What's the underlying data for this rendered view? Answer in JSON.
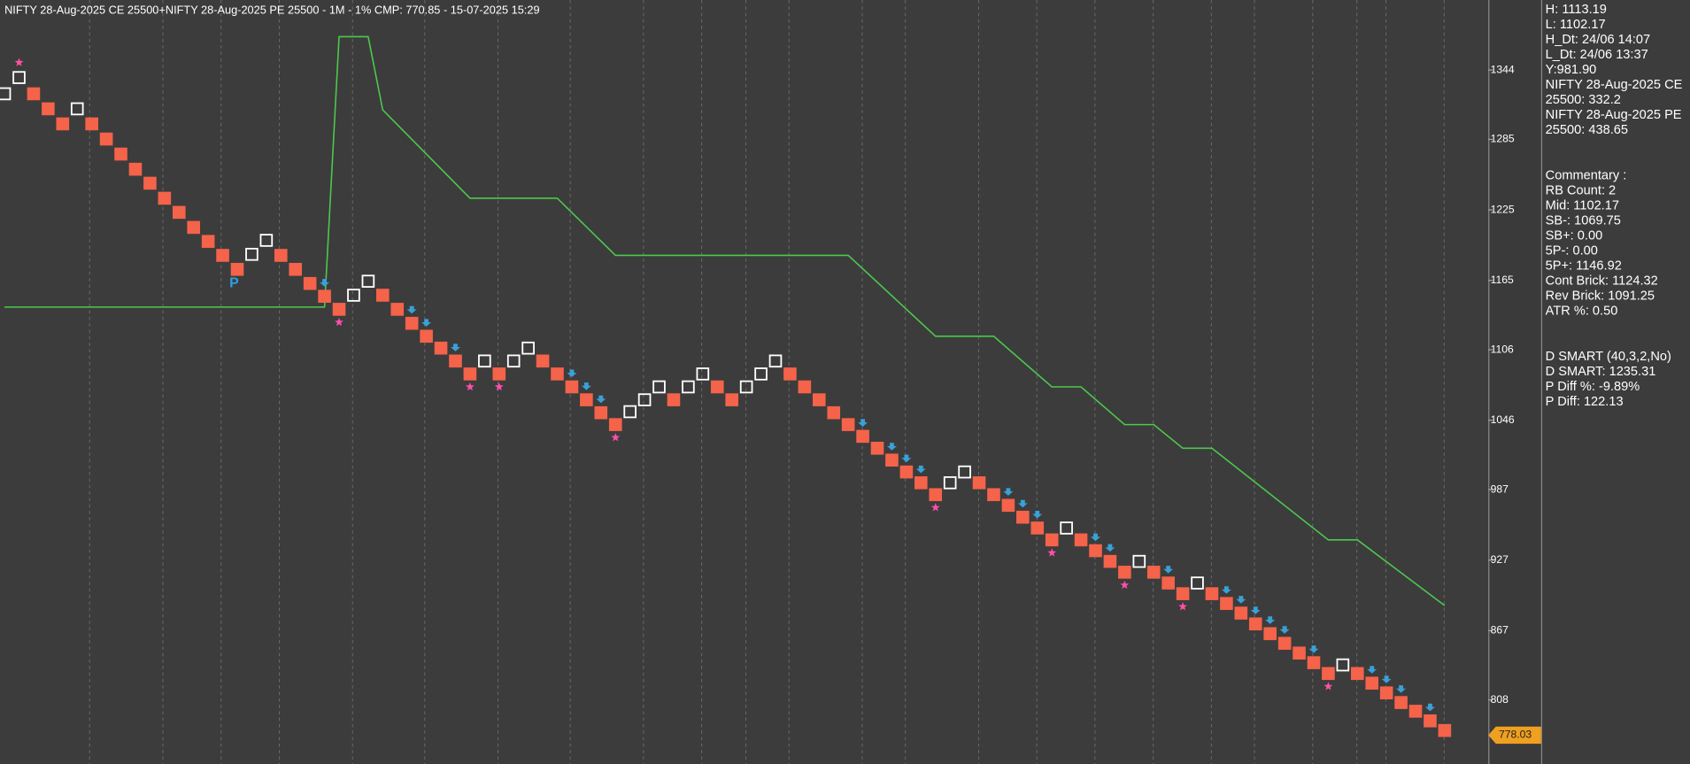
{
  "chart_data": {
    "type": "renko",
    "title": "NIFTY 28-Aug-2025 CE 25500+NIFTY 28-Aug-2025 PE 25500 - 1M - 1% CMP: 770.85 - 15-07-2025 15:29",
    "values": [
      1323.8,
      1337.6,
      1323.8,
      1311.0,
      1298.2,
      1311.0,
      1298.2,
      1285.3,
      1272.5,
      1259.6,
      1247.7,
      1234.9,
      1222.9,
      1210.1,
      1198.2,
      1186.3,
      1174.4,
      1187.2,
      1199.1,
      1186.3,
      1174.4,
      1162.4,
      1151.5,
      1140.4,
      1152.4,
      1164.3,
      1152.4,
      1140.4,
      1128.5,
      1117.5,
      1107.4,
      1096.4,
      1085.4,
      1096.4,
      1085.4,
      1096.4,
      1107.4,
      1096.4,
      1085.4,
      1074.4,
      1063.4,
      1052.4,
      1042.3,
      1053.3,
      1063.4,
      1074.4,
      1063.4,
      1074.4,
      1085.4,
      1074.4,
      1063.4,
      1074.4,
      1085.4,
      1096.4,
      1085.4,
      1074.4,
      1063.4,
      1052.4,
      1042.3,
      1032.3,
      1022.2,
      1012.1,
      1002.0,
      992.8,
      982.7,
      992.8,
      1002.0,
      992.8,
      982.7,
      973.6,
      963.5,
      954.3,
      944.2,
      954.3,
      944.2,
      935.0,
      925.9,
      916.7,
      925.9,
      916.7,
      907.5,
      898.4,
      907.5,
      898.4,
      890.1,
      881.9,
      872.7,
      864.4,
      856.2,
      847.9,
      839.7,
      830.5,
      837.8,
      830.5,
      822.3,
      814.0,
      805.8,
      798.4,
      790.2,
      782.0
    ],
    "up": [
      true,
      true,
      false,
      false,
      false,
      true,
      false,
      false,
      false,
      false,
      false,
      false,
      false,
      false,
      false,
      false,
      false,
      true,
      true,
      false,
      false,
      false,
      false,
      false,
      true,
      true,
      false,
      false,
      false,
      false,
      false,
      false,
      false,
      true,
      false,
      true,
      true,
      false,
      false,
      false,
      false,
      false,
      false,
      true,
      true,
      true,
      false,
      true,
      true,
      false,
      false,
      true,
      true,
      true,
      false,
      false,
      false,
      false,
      false,
      false,
      false,
      false,
      false,
      false,
      false,
      true,
      true,
      false,
      false,
      false,
      false,
      false,
      false,
      true,
      false,
      false,
      false,
      false,
      true,
      false,
      false,
      false,
      true,
      false,
      false,
      false,
      false,
      false,
      false,
      false,
      false,
      false,
      true,
      false,
      false,
      false,
      false,
      false,
      false,
      false
    ],
    "up_color": "#ffffff",
    "down_color": "#f4634a",
    "indicator_line": {
      "color": "#4cc94c",
      "x": [
        0,
        22,
        23,
        25,
        26,
        32,
        38,
        42,
        58,
        64,
        68,
        72,
        74,
        77,
        79,
        81,
        83,
        91,
        93,
        99
      ],
      "values": [
        1142.3,
        1142.3,
        1372.4,
        1372.4,
        1310.1,
        1234.9,
        1234.9,
        1186.3,
        1186.3,
        1117.5,
        1117.5,
        1074.4,
        1074.4,
        1042.3,
        1042.3,
        1022.2,
        1022.2,
        944.2,
        944.2,
        888.3
      ]
    },
    "arrow_x": [
      22,
      28,
      29,
      31,
      39,
      40,
      41,
      59,
      61,
      62,
      63,
      69,
      70,
      71,
      75,
      76,
      80,
      84,
      85,
      86,
      87,
      88,
      90,
      94,
      95,
      96,
      98
    ],
    "arrow_color": "#3aa0d8",
    "star_x": [
      1,
      23,
      32,
      34,
      42,
      64,
      72,
      77,
      81,
      91
    ],
    "star_color": "#ff4fa8",
    "pivot_label": "P",
    "last_price": 778.03,
    "last_price_color": "#f0a020",
    "ylim": [
      753.5,
      1403.6
    ],
    "yticks": [
      1344,
      1285,
      1225,
      1165,
      1106,
      1046,
      987,
      927,
      867,
      808
    ]
  },
  "info_panel": {
    "groups": [
      [
        "H: 1113.19",
        "L: 1102.17",
        "H_Dt: 24/06 14:07",
        "L_Dt: 24/06 13:37",
        "Y:981.90",
        "NIFTY 28-Aug-2025 CE",
        "25500: 332.2",
        "NIFTY 28-Aug-2025 PE",
        "25500: 438.65"
      ],
      [
        "Commentary :",
        "RB Count: 2",
        "Mid: 1102.17",
        "SB-: 1069.75",
        "SB+: 0.00",
        "5P-: 0.00",
        "5P+: 1146.92",
        "Cont Brick: 1124.32",
        "Rev Brick: 1091.25",
        "ATR %: 0.50"
      ],
      [
        "D SMART (40,3,2,No)",
        "D SMART: 1235.31",
        "P Diff %: -9.89%",
        "P Diff: 122.13"
      ]
    ]
  }
}
